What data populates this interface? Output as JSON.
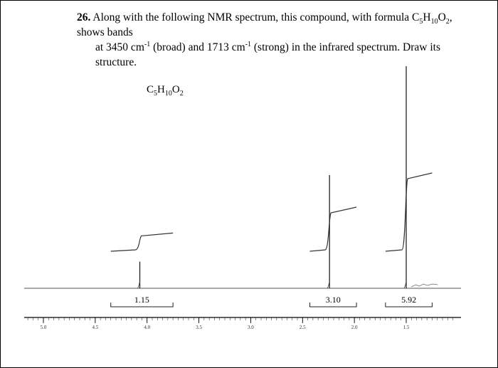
{
  "question": {
    "number": "26.",
    "line1_a": "Along with the following NMR spectrum, this compound, with formula C",
    "line1_sub1": "5",
    "line1_b": "H",
    "line1_sub2": "10",
    "line1_c": "O",
    "line1_sub3": "2",
    "line1_d": ", shows bands",
    "line2_a": "at 3450 cm",
    "line2_sup1": "-1",
    "line2_b": " (broad) and 1713 cm",
    "line2_sup2": "-1",
    "line2_c": " (strong) in the infrared spectrum. Draw its structure."
  },
  "formula_label": {
    "c": "C",
    "c_sub": "5",
    "h": "H",
    "h_sub": "10",
    "o": "O",
    "o_sub": "2"
  },
  "chart_data": {
    "type": "line",
    "title": "",
    "xlabel": "",
    "ylabel": "",
    "x_axis": {
      "reversed": true,
      "range": [
        5.0,
        1.0
      ],
      "tick_labels": [
        "5.0",
        "4.5",
        "4.0",
        "3.5",
        "3.0",
        "2.5",
        "2.0",
        "1.5"
      ],
      "tick_values": [
        5.0,
        4.5,
        4.0,
        3.5,
        3.0,
        2.5,
        2.0,
        1.5
      ]
    },
    "peaks": [
      {
        "shift": 4.07,
        "height": 0.12,
        "integration_label": "1.15",
        "integral_from": 4.35,
        "integral_to": 3.75,
        "integral_rise": 0.18
      },
      {
        "shift": 2.24,
        "height": 0.51,
        "integration_label": "3.10",
        "integral_from": 2.43,
        "integral_to": 1.98,
        "integral_rise": 0.45
      },
      {
        "shift": 1.5,
        "height": 1.0,
        "integration_label": "5.92",
        "integral_from": 1.7,
        "integral_to": 1.25,
        "integral_rise": 0.85
      }
    ],
    "grid": false,
    "legend": "none"
  }
}
